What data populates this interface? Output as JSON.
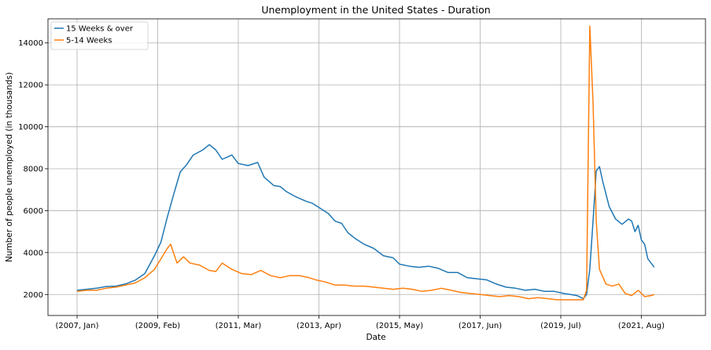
{
  "chart_data": {
    "type": "line",
    "title": "Unemployment in the United States - Duration",
    "xlabel": "Date",
    "ylabel": "Number of people unemployed (in thousands)",
    "x_start": "2007-01",
    "x_ticks": [
      "(2007, Jan)",
      "(2009, Feb)",
      "(2011, Mar)",
      "(2013, Apr)",
      "(2015, May)",
      "(2017, Jun)",
      "(2019, Jul)",
      "(2021, Aug)"
    ],
    "x_tick_dates": [
      "2007-01",
      "2009-02",
      "2011-03",
      "2013-04",
      "2015-05",
      "2017-06",
      "2019-07",
      "2021-08"
    ],
    "y_ticks": [
      2000,
      4000,
      6000,
      8000,
      10000,
      12000,
      14000
    ],
    "ylim": [
      1000,
      15150
    ],
    "grid": true,
    "legend_position": "top-left",
    "series": [
      {
        "name": "15 Weeks & over",
        "color": "#1f77b4",
        "points": [
          [
            "2007-01",
            2200
          ],
          [
            "2007-04",
            2250
          ],
          [
            "2007-07",
            2300
          ],
          [
            "2007-10",
            2380
          ],
          [
            "2008-01",
            2400
          ],
          [
            "2008-04",
            2500
          ],
          [
            "2008-07",
            2680
          ],
          [
            "2008-10",
            3000
          ],
          [
            "2009-01",
            3850
          ],
          [
            "2009-03",
            4500
          ],
          [
            "2009-05",
            5700
          ],
          [
            "2009-07",
            6800
          ],
          [
            "2009-09",
            7850
          ],
          [
            "2009-11",
            8200
          ],
          [
            "2010-01",
            8650
          ],
          [
            "2010-04",
            8900
          ],
          [
            "2010-06",
            9150
          ],
          [
            "2010-08",
            8900
          ],
          [
            "2010-10",
            8450
          ],
          [
            "2011-01",
            8650
          ],
          [
            "2011-03",
            8250
          ],
          [
            "2011-06",
            8150
          ],
          [
            "2011-09",
            8300
          ],
          [
            "2011-11",
            7600
          ],
          [
            "2012-02",
            7200
          ],
          [
            "2012-04",
            7150
          ],
          [
            "2012-06",
            6900
          ],
          [
            "2012-09",
            6650
          ],
          [
            "2012-12",
            6450
          ],
          [
            "2013-02",
            6350
          ],
          [
            "2013-04",
            6150
          ],
          [
            "2013-07",
            5850
          ],
          [
            "2013-09",
            5500
          ],
          [
            "2013-11",
            5400
          ],
          [
            "2014-01",
            4950
          ],
          [
            "2014-03",
            4700
          ],
          [
            "2014-06",
            4400
          ],
          [
            "2014-09",
            4200
          ],
          [
            "2014-12",
            3850
          ],
          [
            "2015-03",
            3750
          ],
          [
            "2015-05",
            3450
          ],
          [
            "2015-08",
            3350
          ],
          [
            "2015-11",
            3300
          ],
          [
            "2016-02",
            3350
          ],
          [
            "2016-05",
            3250
          ],
          [
            "2016-08",
            3050
          ],
          [
            "2016-11",
            3050
          ],
          [
            "2017-02",
            2800
          ],
          [
            "2017-05",
            2750
          ],
          [
            "2017-08",
            2700
          ],
          [
            "2017-11",
            2500
          ],
          [
            "2018-02",
            2350
          ],
          [
            "2018-05",
            2300
          ],
          [
            "2018-08",
            2200
          ],
          [
            "2018-11",
            2250
          ],
          [
            "2019-02",
            2150
          ],
          [
            "2019-05",
            2150
          ],
          [
            "2019-08",
            2050
          ],
          [
            "2019-10",
            2000
          ],
          [
            "2019-12",
            1950
          ],
          [
            "2020-02",
            1800
          ],
          [
            "2020-03",
            2000
          ],
          [
            "2020-04",
            3200
          ],
          [
            "2020-05",
            5500
          ],
          [
            "2020-06",
            7900
          ],
          [
            "2020-07",
            8100
          ],
          [
            "2020-08",
            7400
          ],
          [
            "2020-10",
            6200
          ],
          [
            "2020-12",
            5600
          ],
          [
            "2021-02",
            5350
          ],
          [
            "2021-04",
            5600
          ],
          [
            "2021-05",
            5500
          ],
          [
            "2021-06",
            5000
          ],
          [
            "2021-07",
            5300
          ],
          [
            "2021-08",
            4600
          ],
          [
            "2021-09",
            4400
          ],
          [
            "2021-10",
            3700
          ],
          [
            "2021-12",
            3300
          ]
        ]
      },
      {
        "name": "5-14 Weeks",
        "color": "#ff7f0e",
        "points": [
          [
            "2007-01",
            2150
          ],
          [
            "2007-04",
            2200
          ],
          [
            "2007-07",
            2200
          ],
          [
            "2007-10",
            2300
          ],
          [
            "2008-01",
            2350
          ],
          [
            "2008-04",
            2450
          ],
          [
            "2008-07",
            2550
          ],
          [
            "2008-10",
            2800
          ],
          [
            "2009-01",
            3200
          ],
          [
            "2009-03",
            3700
          ],
          [
            "2009-05",
            4200
          ],
          [
            "2009-06",
            4400
          ],
          [
            "2009-08",
            3500
          ],
          [
            "2009-10",
            3800
          ],
          [
            "2009-12",
            3500
          ],
          [
            "2010-03",
            3400
          ],
          [
            "2010-06",
            3150
          ],
          [
            "2010-08",
            3100
          ],
          [
            "2010-10",
            3500
          ],
          [
            "2011-01",
            3200
          ],
          [
            "2011-04",
            3000
          ],
          [
            "2011-07",
            2950
          ],
          [
            "2011-10",
            3150
          ],
          [
            "2012-01",
            2900
          ],
          [
            "2012-04",
            2800
          ],
          [
            "2012-07",
            2900
          ],
          [
            "2012-10",
            2900
          ],
          [
            "2013-01",
            2800
          ],
          [
            "2013-03",
            2700
          ],
          [
            "2013-06",
            2600
          ],
          [
            "2013-09",
            2450
          ],
          [
            "2013-12",
            2450
          ],
          [
            "2014-03",
            2400
          ],
          [
            "2014-06",
            2400
          ],
          [
            "2014-09",
            2350
          ],
          [
            "2014-12",
            2300
          ],
          [
            "2015-03",
            2250
          ],
          [
            "2015-06",
            2300
          ],
          [
            "2015-09",
            2250
          ],
          [
            "2015-12",
            2150
          ],
          [
            "2016-03",
            2200
          ],
          [
            "2016-06",
            2300
          ],
          [
            "2016-09",
            2200
          ],
          [
            "2016-12",
            2100
          ],
          [
            "2017-03",
            2050
          ],
          [
            "2017-06",
            2000
          ],
          [
            "2017-09",
            1950
          ],
          [
            "2017-12",
            1900
          ],
          [
            "2018-03",
            1950
          ],
          [
            "2018-06",
            1900
          ],
          [
            "2018-09",
            1800
          ],
          [
            "2018-12",
            1850
          ],
          [
            "2019-03",
            1800
          ],
          [
            "2019-06",
            1750
          ],
          [
            "2019-09",
            1750
          ],
          [
            "2019-12",
            1750
          ],
          [
            "2020-02",
            1750
          ],
          [
            "2020-03",
            2200
          ],
          [
            "2020-04",
            14800
          ],
          [
            "2020-05",
            11200
          ],
          [
            "2020-06",
            5500
          ],
          [
            "2020-07",
            3200
          ],
          [
            "2020-09",
            2500
          ],
          [
            "2020-11",
            2400
          ],
          [
            "2021-01",
            2500
          ],
          [
            "2021-03",
            2050
          ],
          [
            "2021-05",
            1950
          ],
          [
            "2021-07",
            2200
          ],
          [
            "2021-09",
            1900
          ],
          [
            "2021-11",
            1950
          ],
          [
            "2021-12",
            2000
          ]
        ]
      }
    ]
  }
}
